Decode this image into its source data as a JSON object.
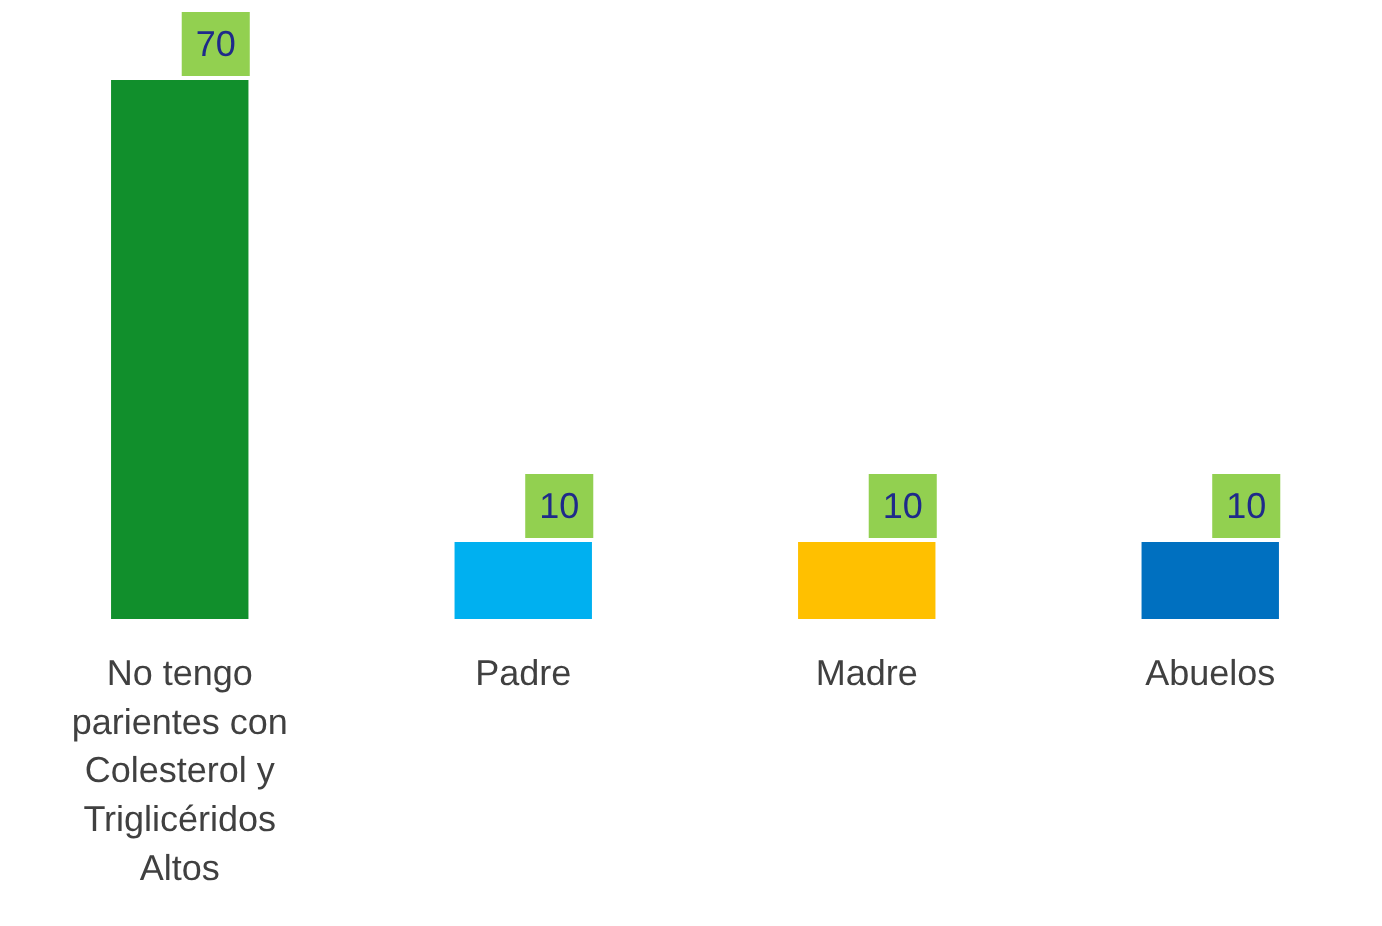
{
  "chart_data": {
    "type": "bar",
    "categories": [
      "No tengo parientes con Colesterol y Triglicéridos Altos",
      "Padre",
      "Madre",
      "Abuelos"
    ],
    "values": [
      70,
      10,
      10,
      10
    ],
    "colors": [
      "#118f2c",
      "#00b0f0",
      "#ffc000",
      "#0070c0"
    ],
    "data_labels": true,
    "grid": false,
    "legend": false,
    "tick_labels": "x"
  }
}
